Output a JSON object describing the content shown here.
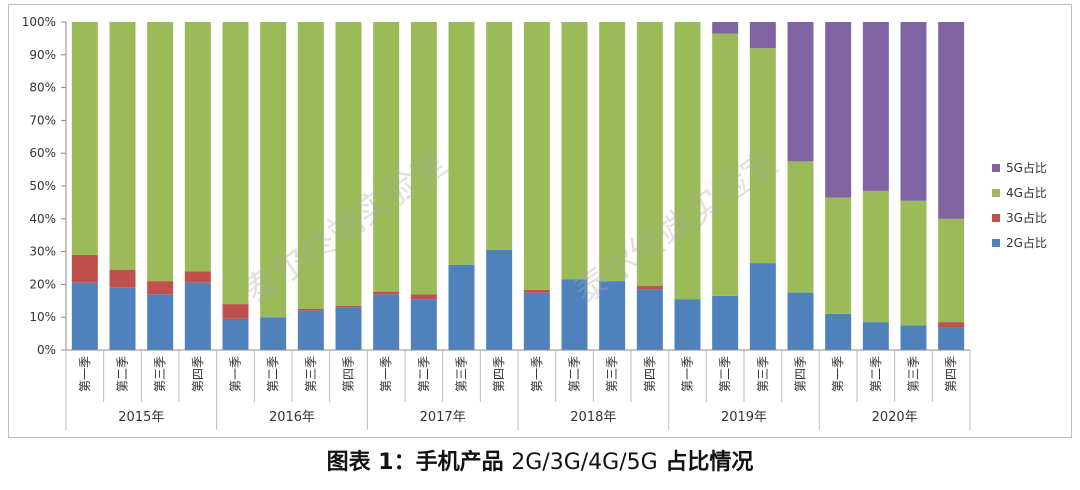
{
  "caption": {
    "prefix": "图表 1：手机产品",
    "middle": "2G/3G/4G/5G",
    "suffix": "占比情况"
  },
  "watermarks": [
    {
      "text": "泰尔终端实验室"
    },
    {
      "text": "泰尔终端实验室"
    }
  ],
  "colors": {
    "2G": "#4f81bd",
    "3G": "#c0504d",
    "4G": "#9bbb59",
    "5G": "#8064a2"
  },
  "chart_data": {
    "type": "bar",
    "stacked": true,
    "ylim": [
      0,
      100
    ],
    "yticks": [
      "0%",
      "10%",
      "20%",
      "30%",
      "40%",
      "50%",
      "60%",
      "70%",
      "80%",
      "90%",
      "100%"
    ],
    "grid": false,
    "legend_position": "right",
    "years": [
      "2015年",
      "2016年",
      "2017年",
      "2018年",
      "2019年",
      "2020年"
    ],
    "quarter_labels": [
      "第一季",
      "第二季",
      "第三季",
      "第四季"
    ],
    "categories": [
      "2015 第一季",
      "2015 第二季",
      "2015 第三季",
      "2015 第四季",
      "2016 第一季",
      "2016 第二季",
      "2016 第三季",
      "2016 第四季",
      "2017 第一季",
      "2017 第二季",
      "2017 第三季",
      "2017 第四季",
      "2018 第一季",
      "2018 第二季",
      "2018 第三季",
      "2018 第四季",
      "2019 第一季",
      "2019 第二季",
      "2019 第三季",
      "2019 第四季",
      "2020 第一季",
      "2020 第二季",
      "2020 第三季",
      "2020 第四季"
    ],
    "series": [
      {
        "name": "2G占比",
        "key": "2G",
        "values": [
          20.5,
          19,
          17,
          20.5,
          9.5,
          10,
          12,
          13,
          17,
          15.5,
          26,
          30.5,
          17.5,
          21.5,
          21,
          18.5,
          15.5,
          16.5,
          26.5,
          17.5,
          11,
          8.5,
          7.5,
          7
        ]
      },
      {
        "name": "3G占比",
        "key": "3G",
        "values": [
          8.5,
          5.5,
          4,
          3.5,
          4.5,
          0,
          0.5,
          0.5,
          0.8,
          1.5,
          0,
          0,
          0.8,
          0,
          0,
          1,
          0,
          0,
          0,
          0,
          0,
          0,
          0,
          1.5
        ]
      },
      {
        "name": "4G占比",
        "key": "4G",
        "values": [
          71,
          75.5,
          79,
          76,
          86,
          90,
          87.5,
          86.5,
          82.2,
          83,
          74,
          69.5,
          81.7,
          78.5,
          79,
          80.5,
          84.5,
          80,
          65.5,
          40,
          35.5,
          40,
          38,
          31.5
        ]
      },
      {
        "name": "5G占比",
        "key": "5G",
        "values": [
          0,
          0,
          0,
          0,
          0,
          0,
          0,
          0,
          0,
          0,
          0,
          0,
          0,
          0,
          0,
          0,
          0,
          3.5,
          8,
          42.5,
          53.5,
          51.5,
          54.5,
          60
        ]
      }
    ]
  }
}
